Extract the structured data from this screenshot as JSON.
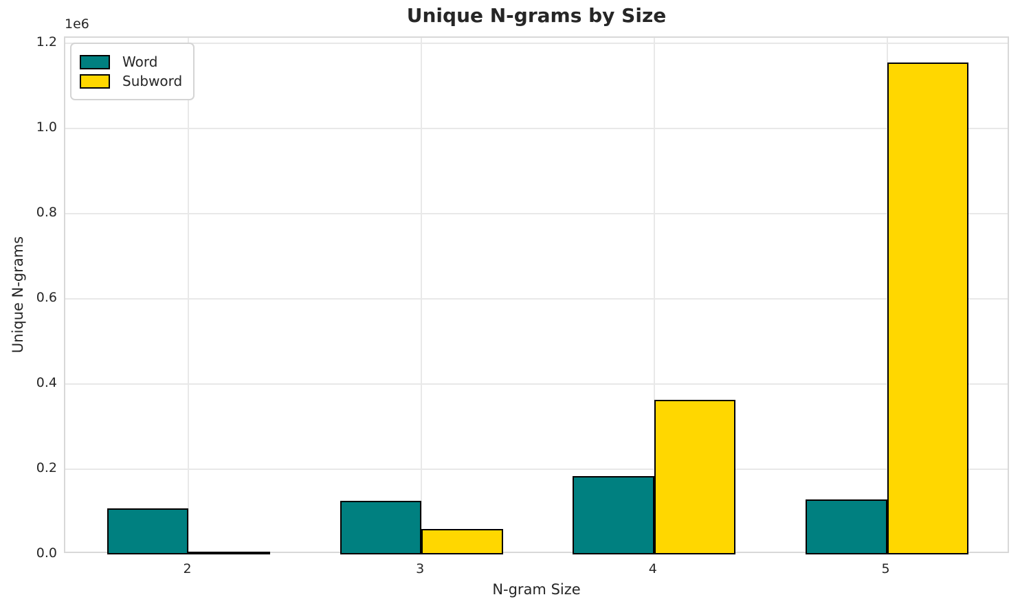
{
  "chart_data": {
    "type": "bar",
    "title": "Unique N-grams by Size",
    "xlabel": "N-gram Size",
    "ylabel": "Unique N-grams",
    "y_offset_label": "1e6",
    "categories": [
      "2",
      "3",
      "4",
      "5"
    ],
    "series": [
      {
        "name": "Word",
        "color": "#008080",
        "values": [
          108000,
          126000,
          184000,
          129000
        ]
      },
      {
        "name": "Subword",
        "color": "#FFD700",
        "values": [
          7000,
          60000,
          363000,
          1155000
        ]
      }
    ],
    "bar_edge_color": "#000000",
    "ylim": [
      0,
      1200000
    ],
    "yticks": [
      0,
      200000,
      400000,
      600000,
      800000,
      1000000,
      1200000
    ],
    "ytick_labels": [
      "0.0",
      "0.2",
      "0.4",
      "0.6",
      "0.8",
      "1.0",
      "1.2"
    ],
    "grid": true,
    "legend_position": "upper-left",
    "colors": {
      "text": "#262626",
      "grid": "#e8e8e8",
      "spine": "#d8d8d8",
      "background": "#ffffff"
    }
  }
}
